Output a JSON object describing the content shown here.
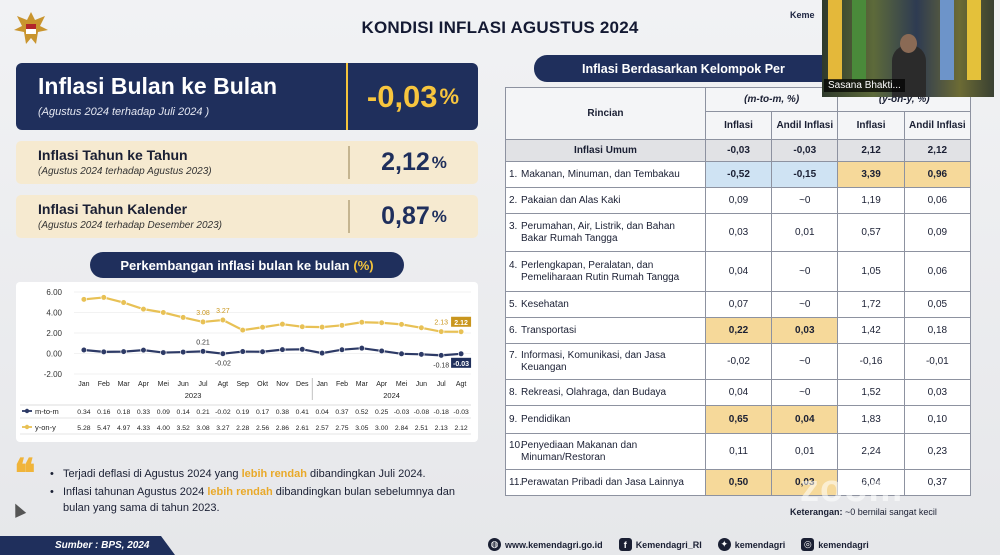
{
  "header": {
    "title": "KONDISI INFLASI AGUSTUS 2024",
    "brand": "Keme"
  },
  "summary": {
    "mom": {
      "label": "Inflasi Bulan ke Bulan",
      "sub": "(Agustus 2024 terhadap Juli 2024 )",
      "value": "-0,03",
      "unit": "%"
    },
    "yoy": {
      "label": "Inflasi Tahun ke Tahun",
      "sub": "(Agustus 2024 terhadap Agustus 2023)",
      "value": "2,12",
      "unit": "%"
    },
    "ytd": {
      "label": "Inflasi Tahun Kalender",
      "sub": "(Agustus 2024 terhadap Desember 2023)",
      "value": "0,87",
      "unit": "%"
    }
  },
  "chart_data": {
    "type": "line",
    "title": "Perkembangan inflasi bulan ke bulan",
    "title_unit": "(%)",
    "categories": [
      "Jan",
      "Feb",
      "Mar",
      "Apr",
      "Mei",
      "Jun",
      "Jul",
      "Agt",
      "Sep",
      "Okt",
      "Nov",
      "Des",
      "Jan",
      "Feb",
      "Mar",
      "Apr",
      "Mei",
      "Jun",
      "Jul",
      "Agt"
    ],
    "year_labels": [
      "2023",
      "2024"
    ],
    "series": [
      {
        "name": "m-to-m",
        "color": "#2d3a66",
        "values": [
          0.34,
          0.16,
          0.18,
          0.33,
          0.09,
          0.14,
          0.21,
          -0.02,
          0.19,
          0.17,
          0.38,
          0.41,
          0.04,
          0.37,
          0.52,
          0.25,
          -0.03,
          -0.08,
          -0.18,
          -0.03
        ],
        "table_values": [
          "0.34",
          "0.16",
          "0.18",
          "0.33",
          "0.09",
          "0.14",
          "0.21",
          "-0.02",
          "0.19",
          "0.17",
          "0.38",
          "0.41",
          "0.04",
          "0.37",
          "0.52",
          "0.25",
          "-0.03",
          "-0.08",
          "-0.18",
          "-0.03"
        ]
      },
      {
        "name": "y-on-y",
        "color": "#e8c155",
        "values": [
          5.28,
          5.47,
          4.97,
          4.33,
          4.0,
          3.52,
          3.08,
          3.27,
          2.28,
          2.56,
          2.86,
          2.61,
          2.57,
          2.75,
          3.05,
          3.0,
          2.84,
          2.51,
          2.13,
          2.12
        ],
        "table_values": [
          "5.28",
          "5.47",
          "4.97",
          "4.33",
          "4.00",
          "3.52",
          "3.08",
          "3.27",
          "2.28",
          "2.56",
          "2.86",
          "2.61",
          "2.57",
          "2.75",
          "3.05",
          "3.00",
          "2.84",
          "2.51",
          "2.13",
          "2.12"
        ]
      }
    ],
    "yticks": [
      "6.00",
      "4.00",
      "2.00",
      "0.00",
      "-2.00"
    ],
    "ylim": [
      -2,
      6
    ],
    "annotations": [
      {
        "series": "y-on-y",
        "index": 6,
        "text": "3.08"
      },
      {
        "series": "y-on-y",
        "index": 7,
        "text": "3.27"
      },
      {
        "series": "y-on-y",
        "index": 18,
        "text": "2.13"
      },
      {
        "series": "y-on-y",
        "index": 19,
        "text": "2.12",
        "boxed": true
      },
      {
        "series": "m-to-m",
        "index": 6,
        "text": "0.21"
      },
      {
        "series": "m-to-m",
        "index": 7,
        "text": "-0.02"
      },
      {
        "series": "m-to-m",
        "index": 18,
        "text": "-0.18"
      },
      {
        "series": "m-to-m",
        "index": 19,
        "text": "-0.03",
        "boxed": true
      }
    ]
  },
  "notes": {
    "b1_pre": "Terjadi deflasi di Agustus 2024 yang ",
    "b1_hl": "lebih rendah",
    "b1_post": " dibandingkan Juli 2024.",
    "b2_pre": "Inflasi tahunan Agustus 2024 ",
    "b2_hl": "lebih rendah",
    "b2_post": " dibandingkan bulan sebelumnya dan bulan yang sama di tahun 2023."
  },
  "table": {
    "title": "Inflasi Berdasarkan Kelompok Per",
    "col_rincian": "Rincian",
    "grp_mtm": "(m-to-m, %)",
    "grp_yoy": "(y-on-y, %)",
    "col_inflasi": "Inflasi",
    "col_andil": "Andil Inflasi",
    "umum": {
      "label": "Inflasi Umum",
      "v": [
        "-0,03",
        "-0,03",
        "2,12",
        "2,12"
      ]
    },
    "rows": [
      {
        "no": "1.",
        "label": "Makanan, Minuman, dan Tembakau",
        "v": [
          "-0,52",
          "-0,15",
          "3,39",
          "0,96"
        ],
        "hl": [
          "blue",
          "blue",
          "gold",
          "gold"
        ]
      },
      {
        "no": "2.",
        "label": "Pakaian dan Alas Kaki",
        "v": [
          "0,09",
          "~0",
          "1,19",
          "0,06"
        ],
        "hl": [
          "",
          "",
          "",
          ""
        ]
      },
      {
        "no": "3.",
        "label": "Perumahan, Air, Listrik, dan Bahan Bakar Rumah Tangga",
        "v": [
          "0,03",
          "0,01",
          "0,57",
          "0,09"
        ],
        "hl": [
          "",
          "",
          "",
          ""
        ]
      },
      {
        "no": "4.",
        "label": "Perlengkapan, Peralatan, dan Pemeliharaan Rutin Rumah Tangga",
        "v": [
          "0,04",
          "~0",
          "1,05",
          "0,06"
        ],
        "hl": [
          "",
          "",
          "",
          ""
        ]
      },
      {
        "no": "5.",
        "label": "Kesehatan",
        "v": [
          "0,07",
          "~0",
          "1,72",
          "0,05"
        ],
        "hl": [
          "",
          "",
          "",
          ""
        ]
      },
      {
        "no": "6.",
        "label": "Transportasi",
        "v": [
          "0,22",
          "0,03",
          "1,42",
          "0,18"
        ],
        "hl": [
          "gold",
          "gold",
          "",
          ""
        ]
      },
      {
        "no": "7.",
        "label": "Informasi, Komunikasi, dan Jasa Keuangan",
        "v": [
          "-0,02",
          "~0",
          "-0,16",
          "-0,01"
        ],
        "hl": [
          "",
          "",
          "",
          ""
        ]
      },
      {
        "no": "8.",
        "label": "Rekreasi, Olahraga, dan Budaya",
        "v": [
          "0,04",
          "~0",
          "1,52",
          "0,03"
        ],
        "hl": [
          "",
          "",
          "",
          ""
        ]
      },
      {
        "no": "9.",
        "label": "Pendidikan",
        "v": [
          "0,65",
          "0,04",
          "1,83",
          "0,10"
        ],
        "hl": [
          "gold",
          "gold",
          "",
          ""
        ]
      },
      {
        "no": "10.",
        "label": "Penyediaan Makanan dan Minuman/Restoran",
        "v": [
          "0,11",
          "0,01",
          "2,24",
          "0,23"
        ],
        "hl": [
          "",
          "",
          "",
          ""
        ]
      },
      {
        "no": "11.",
        "label": "Perawatan Pribadi dan Jasa Lainnya",
        "v": [
          "0,50",
          "0,03",
          "6,04",
          "0,37"
        ],
        "hl": [
          "gold",
          "gold",
          "",
          ""
        ]
      }
    ],
    "note_label": "Keterangan:",
    "note_text": " ~0 bernilai sangat kecil"
  },
  "footer": {
    "source": "Sumber : BPS, 2024",
    "website": "www.kemendagri.go.id",
    "facebook": "Kemendagri_RI",
    "twitter": "kemendagri",
    "instagram": "kemendagri"
  },
  "video": {
    "label": "Sasana Bhakti...",
    "watermark": "zoom"
  }
}
